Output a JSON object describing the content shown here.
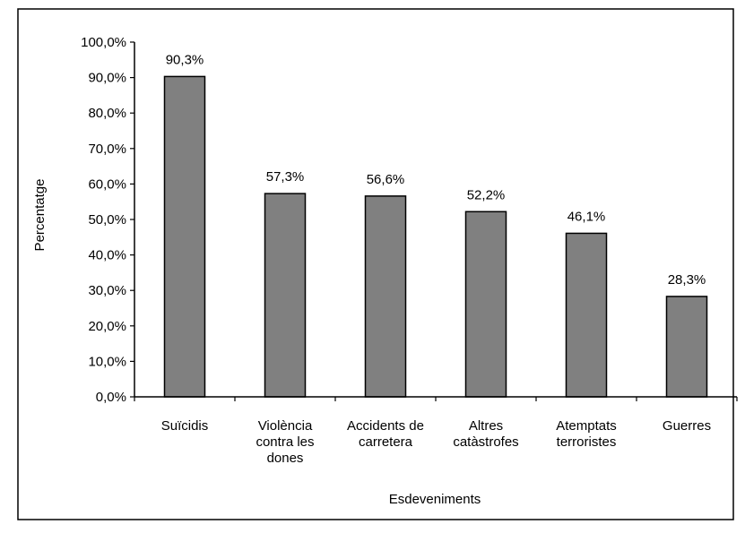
{
  "chart_data": {
    "type": "bar",
    "title": "",
    "xlabel": "Esdeveniments",
    "ylabel": "Percentatge",
    "ylim": [
      0,
      100
    ],
    "y_ticks": [
      "0,0%",
      "10,0%",
      "20,0%",
      "30,0%",
      "40,0%",
      "50,0%",
      "60,0%",
      "70,0%",
      "80,0%",
      "90,0%",
      "100,0%"
    ],
    "categories": [
      [
        "Suïcidis"
      ],
      [
        "Violència",
        "contra les",
        "dones"
      ],
      [
        "Accidents de",
        "carretera"
      ],
      [
        "Altres",
        "catàstrofes"
      ],
      [
        "Atemptats",
        "terroristes"
      ],
      [
        "Guerres"
      ]
    ],
    "values": [
      90.3,
      57.3,
      56.6,
      52.2,
      46.1,
      28.3
    ],
    "value_labels": [
      "90,3%",
      "57,3%",
      "56,6%",
      "52,2%",
      "46,1%",
      "28,3%"
    ],
    "grid": false,
    "legend": "none",
    "colors": {
      "bar_fill": "#808080",
      "bar_stroke": "#000000",
      "background": "#ffffff"
    }
  }
}
